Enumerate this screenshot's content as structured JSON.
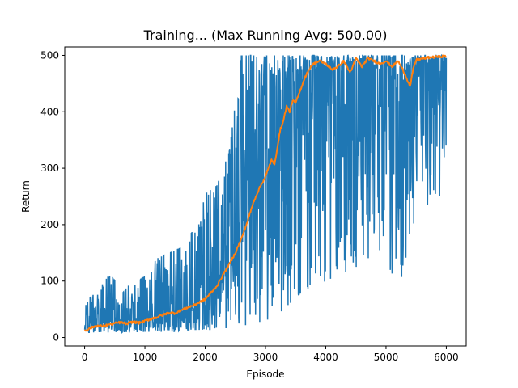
{
  "chart_data": {
    "type": "line",
    "title": "Training... (Max Running Avg: 500.00)",
    "xlabel": "Episode",
    "ylabel": "Return",
    "xlim": [
      -330,
      6330
    ],
    "ylim": [
      -15,
      515
    ],
    "xticks": [
      0,
      1000,
      2000,
      3000,
      4000,
      5000,
      6000
    ],
    "yticks": [
      0,
      100,
      200,
      300,
      400,
      500
    ],
    "grid": false,
    "legend": "none",
    "series": [
      {
        "color": "#1f77b4",
        "x": [
          0,
          200,
          400,
          600,
          800,
          1000,
          1200,
          1400,
          1600,
          1800,
          2000,
          2200,
          2400,
          2600,
          2800,
          3000,
          3200,
          3400,
          3600,
          3800,
          4000,
          4200,
          4400,
          4600,
          4800,
          5000,
          5200,
          5400,
          5600,
          5800,
          6000
        ],
        "min": [
          9,
          9,
          9,
          9,
          9,
          10,
          10,
          10,
          12,
          13,
          14,
          15,
          17,
          20,
          25,
          30,
          40,
          60,
          80,
          90,
          100,
          110,
          120,
          130,
          150,
          160,
          45,
          190,
          230,
          240,
          250
        ],
        "max": [
          65,
          80,
          110,
          95,
          90,
          110,
          140,
          150,
          160,
          190,
          255,
          270,
          330,
          500,
          500,
          500,
          500,
          500,
          500,
          500,
          500,
          500,
          500,
          500,
          500,
          500,
          500,
          500,
          500,
          500,
          500
        ],
        "mean": [
          25,
          26,
          28,
          30,
          31,
          33,
          40,
          45,
          52,
          60,
          80,
          110,
          150,
          250,
          350,
          390,
          410,
          440,
          460,
          470,
          475,
          480,
          485,
          488,
          480,
          470,
          440,
          470,
          480,
          490,
          490
        ]
      },
      {
        "color": "#ff7f0e",
        "x": [
          0,
          100,
          200,
          300,
          400,
          500,
          600,
          700,
          800,
          900,
          1000,
          1100,
          1200,
          1300,
          1400,
          1500,
          1600,
          1700,
          1800,
          1900,
          2000,
          2100,
          2200,
          2300,
          2400,
          2500,
          2600,
          2700,
          2800,
          2900,
          3000,
          3050,
          3100,
          3150,
          3200,
          3250,
          3300,
          3350,
          3400,
          3450,
          3500,
          3600,
          3650,
          3700,
          3750,
          3800,
          3900,
          4000,
          4100,
          4200,
          4300,
          4400,
          4450,
          4500,
          4600,
          4700,
          4800,
          4900,
          5000,
          5100,
          5200,
          5300,
          5400,
          5450,
          5500,
          5600,
          5700,
          5800,
          5900,
          6000
        ],
        "y": [
          12,
          17,
          21,
          20,
          23,
          25,
          27,
          24,
          28,
          26,
          29,
          33,
          36,
          40,
          44,
          43,
          48,
          53,
          57,
          62,
          68,
          80,
          92,
          112,
          130,
          150,
          175,
          205,
          240,
          265,
          285,
          300,
          315,
          305,
          340,
          370,
          385,
          410,
          400,
          420,
          415,
          445,
          460,
          470,
          480,
          485,
          490,
          485,
          475,
          480,
          490,
          470,
          480,
          495,
          480,
          495,
          490,
          485,
          490,
          480,
          490,
          470,
          445,
          475,
          492,
          494,
          496,
          497,
          498,
          499
        ]
      }
    ]
  }
}
